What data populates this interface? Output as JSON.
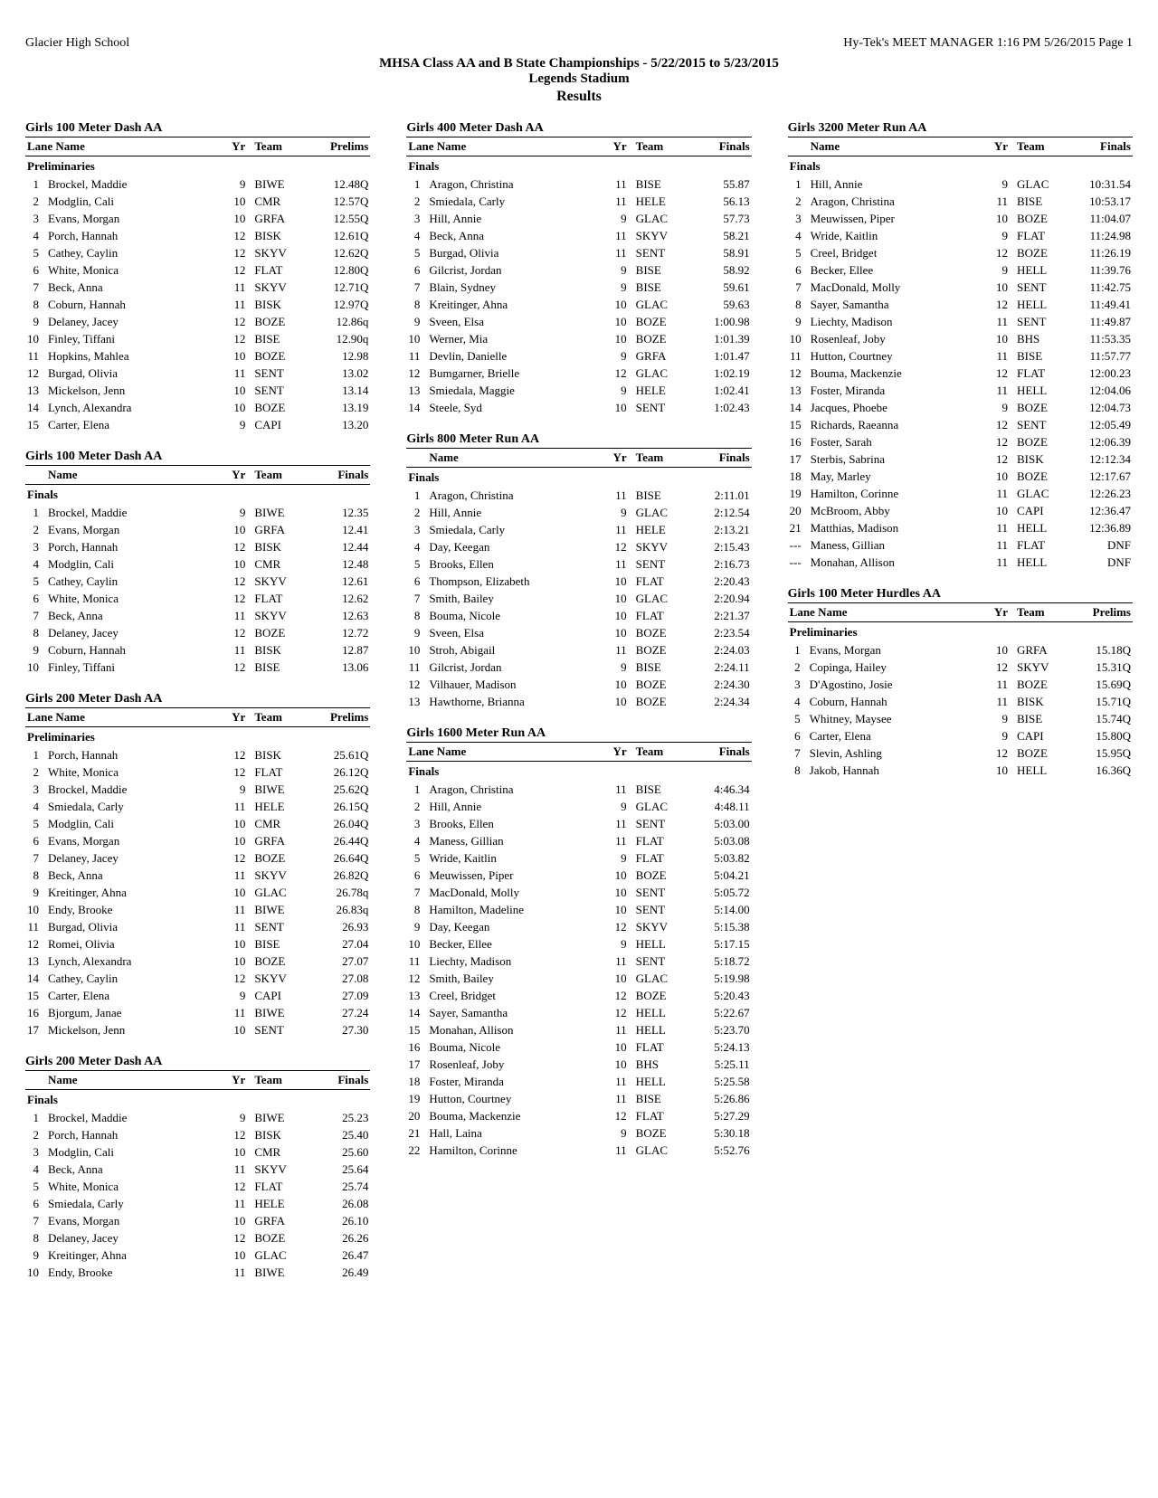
{
  "header": {
    "left": "Glacier High School",
    "right": "Hy-Tek's MEET MANAGER  1:16 PM  5/26/2015  Page 1"
  },
  "title": {
    "line1": "MHSA Class AA and B  State Championships - 5/22/2015 to 5/23/2015",
    "line2": "Legends Stadium",
    "results": "Results"
  },
  "col_labels": {
    "lane": "Lane",
    "name": "Name",
    "name_only": "Name",
    "yr": "Yr",
    "team": "Team",
    "prelims": "Prelims",
    "finals": "Finals"
  },
  "sections": {
    "preliminaries": "Preliminaries",
    "finals": "Finals"
  },
  "events": [
    {
      "title": "Girls 100 Meter Dash AA",
      "header_left": "lane_name",
      "result_label": "prelims",
      "section": "preliminaries",
      "rows": [
        [
          "1",
          "Brockel, Maddie",
          "9",
          "BIWE",
          "12.48Q"
        ],
        [
          "2",
          "Modglin, Cali",
          "10",
          "CMR",
          "12.57Q"
        ],
        [
          "3",
          "Evans, Morgan",
          "10",
          "GRFA",
          "12.55Q"
        ],
        [
          "4",
          "Porch, Hannah",
          "12",
          "BISK",
          "12.61Q"
        ],
        [
          "5",
          "Cathey, Caylin",
          "12",
          "SKYV",
          "12.62Q"
        ],
        [
          "6",
          "White, Monica",
          "12",
          "FLAT",
          "12.80Q"
        ],
        [
          "7",
          "Beck, Anna",
          "11",
          "SKYV",
          "12.71Q"
        ],
        [
          "8",
          "Coburn, Hannah",
          "11",
          "BISK",
          "12.97Q"
        ],
        [
          "9",
          "Delaney, Jacey",
          "12",
          "BOZE",
          "12.86q"
        ],
        [
          "10",
          "Finley, Tiffani",
          "12",
          "BISE",
          "12.90q"
        ],
        [
          "11",
          "Hopkins, Mahlea",
          "10",
          "BOZE",
          "12.98"
        ],
        [
          "12",
          "Burgad, Olivia",
          "11",
          "SENT",
          "13.02"
        ],
        [
          "13",
          "Mickelson, Jenn",
          "10",
          "SENT",
          "13.14"
        ],
        [
          "14",
          "Lynch, Alexandra",
          "10",
          "BOZE",
          "13.19"
        ],
        [
          "15",
          "Carter, Elena",
          "9",
          "CAPI",
          "13.20"
        ]
      ]
    },
    {
      "title": "Girls 100 Meter Dash AA",
      "header_left": "name_only",
      "result_label": "finals",
      "section": "finals",
      "rows": [
        [
          "1",
          "Brockel, Maddie",
          "9",
          "BIWE",
          "12.35"
        ],
        [
          "2",
          "Evans, Morgan",
          "10",
          "GRFA",
          "12.41"
        ],
        [
          "3",
          "Porch, Hannah",
          "12",
          "BISK",
          "12.44"
        ],
        [
          "4",
          "Modglin, Cali",
          "10",
          "CMR",
          "12.48"
        ],
        [
          "5",
          "Cathey, Caylin",
          "12",
          "SKYV",
          "12.61"
        ],
        [
          "6",
          "White, Monica",
          "12",
          "FLAT",
          "12.62"
        ],
        [
          "7",
          "Beck, Anna",
          "11",
          "SKYV",
          "12.63"
        ],
        [
          "8",
          "Delaney, Jacey",
          "12",
          "BOZE",
          "12.72"
        ],
        [
          "9",
          "Coburn, Hannah",
          "11",
          "BISK",
          "12.87"
        ],
        [
          "10",
          "Finley, Tiffani",
          "12",
          "BISE",
          "13.06"
        ]
      ]
    },
    {
      "title": "Girls 200 Meter Dash AA",
      "header_left": "lane_name",
      "result_label": "prelims",
      "section": "preliminaries",
      "rows": [
        [
          "1",
          "Porch, Hannah",
          "12",
          "BISK",
          "25.61Q"
        ],
        [
          "2",
          "White, Monica",
          "12",
          "FLAT",
          "26.12Q"
        ],
        [
          "3",
          "Brockel, Maddie",
          "9",
          "BIWE",
          "25.62Q"
        ],
        [
          "4",
          "Smiedala, Carly",
          "11",
          "HELE",
          "26.15Q"
        ],
        [
          "5",
          "Modglin, Cali",
          "10",
          "CMR",
          "26.04Q"
        ],
        [
          "6",
          "Evans, Morgan",
          "10",
          "GRFA",
          "26.44Q"
        ],
        [
          "7",
          "Delaney, Jacey",
          "12",
          "BOZE",
          "26.64Q"
        ],
        [
          "8",
          "Beck, Anna",
          "11",
          "SKYV",
          "26.82Q"
        ],
        [
          "9",
          "Kreitinger, Ahna",
          "10",
          "GLAC",
          "26.78q"
        ],
        [
          "10",
          "Endy, Brooke",
          "11",
          "BIWE",
          "26.83q"
        ],
        [
          "11",
          "Burgad, Olivia",
          "11",
          "SENT",
          "26.93"
        ],
        [
          "12",
          "Romei, Olivia",
          "10",
          "BISE",
          "27.04"
        ],
        [
          "13",
          "Lynch, Alexandra",
          "10",
          "BOZE",
          "27.07"
        ],
        [
          "14",
          "Cathey, Caylin",
          "12",
          "SKYV",
          "27.08"
        ],
        [
          "15",
          "Carter, Elena",
          "9",
          "CAPI",
          "27.09"
        ],
        [
          "16",
          "Bjorgum, Janae",
          "11",
          "BIWE",
          "27.24"
        ],
        [
          "17",
          "Mickelson, Jenn",
          "10",
          "SENT",
          "27.30"
        ]
      ]
    },
    {
      "title": "Girls 200 Meter Dash AA",
      "header_left": "name_only",
      "result_label": "finals",
      "section": "finals",
      "rows": [
        [
          "1",
          "Brockel, Maddie",
          "9",
          "BIWE",
          "25.23"
        ],
        [
          "2",
          "Porch, Hannah",
          "12",
          "BISK",
          "25.40"
        ],
        [
          "3",
          "Modglin, Cali",
          "10",
          "CMR",
          "25.60"
        ],
        [
          "4",
          "Beck, Anna",
          "11",
          "SKYV",
          "25.64"
        ],
        [
          "5",
          "White, Monica",
          "12",
          "FLAT",
          "25.74"
        ],
        [
          "6",
          "Smiedala, Carly",
          "11",
          "HELE",
          "26.08"
        ],
        [
          "7",
          "Evans, Morgan",
          "10",
          "GRFA",
          "26.10"
        ],
        [
          "8",
          "Delaney, Jacey",
          "12",
          "BOZE",
          "26.26"
        ],
        [
          "9",
          "Kreitinger, Ahna",
          "10",
          "GLAC",
          "26.47"
        ],
        [
          "10",
          "Endy, Brooke",
          "11",
          "BIWE",
          "26.49"
        ]
      ]
    },
    {
      "title": "Girls 400 Meter Dash AA",
      "header_left": "lane_name",
      "result_label": "finals",
      "section": "finals",
      "rows": [
        [
          "1",
          "Aragon, Christina",
          "11",
          "BISE",
          "55.87"
        ],
        [
          "2",
          "Smiedala, Carly",
          "11",
          "HELE",
          "56.13"
        ],
        [
          "3",
          "Hill, Annie",
          "9",
          "GLAC",
          "57.73"
        ],
        [
          "4",
          "Beck, Anna",
          "11",
          "SKYV",
          "58.21"
        ],
        [
          "5",
          "Burgad, Olivia",
          "11",
          "SENT",
          "58.91"
        ],
        [
          "6",
          "Gilcrist, Jordan",
          "9",
          "BISE",
          "58.92"
        ],
        [
          "7",
          "Blain, Sydney",
          "9",
          "BISE",
          "59.61"
        ],
        [
          "8",
          "Kreitinger, Ahna",
          "10",
          "GLAC",
          "59.63"
        ],
        [
          "9",
          "Sveen, Elsa",
          "10",
          "BOZE",
          "1:00.98"
        ],
        [
          "10",
          "Werner, Mia",
          "10",
          "BOZE",
          "1:01.39"
        ],
        [
          "11",
          "Devlin, Danielle",
          "9",
          "GRFA",
          "1:01.47"
        ],
        [
          "12",
          "Bumgarner, Brielle",
          "12",
          "GLAC",
          "1:02.19"
        ],
        [
          "13",
          "Smiedala, Maggie",
          "9",
          "HELE",
          "1:02.41"
        ],
        [
          "14",
          "Steele, Syd",
          "10",
          "SENT",
          "1:02.43"
        ]
      ]
    },
    {
      "title": "Girls 800 Meter Run AA",
      "header_left": "name_only",
      "result_label": "finals",
      "section": "finals",
      "rows": [
        [
          "1",
          "Aragon, Christina",
          "11",
          "BISE",
          "2:11.01"
        ],
        [
          "2",
          "Hill, Annie",
          "9",
          "GLAC",
          "2:12.54"
        ],
        [
          "3",
          "Smiedala, Carly",
          "11",
          "HELE",
          "2:13.21"
        ],
        [
          "4",
          "Day, Keegan",
          "12",
          "SKYV",
          "2:15.43"
        ],
        [
          "5",
          "Brooks, Ellen",
          "11",
          "SENT",
          "2:16.73"
        ],
        [
          "6",
          "Thompson, Elizabeth",
          "10",
          "FLAT",
          "2:20.43"
        ],
        [
          "7",
          "Smith, Bailey",
          "10",
          "GLAC",
          "2:20.94"
        ],
        [
          "8",
          "Bouma, Nicole",
          "10",
          "FLAT",
          "2:21.37"
        ],
        [
          "9",
          "Sveen, Elsa",
          "10",
          "BOZE",
          "2:23.54"
        ],
        [
          "10",
          "Stroh, Abigail",
          "11",
          "BOZE",
          "2:24.03"
        ],
        [
          "11",
          "Gilcrist, Jordan",
          "9",
          "BISE",
          "2:24.11"
        ],
        [
          "12",
          "Vilhauer, Madison",
          "10",
          "BOZE",
          "2:24.30"
        ],
        [
          "13",
          "Hawthorne, Brianna",
          "10",
          "BOZE",
          "2:24.34"
        ]
      ]
    },
    {
      "title": "Girls 1600 Meter Run AA",
      "header_left": "lane_name",
      "result_label": "finals",
      "section": "finals",
      "flow": true,
      "rows": [
        [
          "1",
          "Aragon, Christina",
          "11",
          "BISE",
          "4:46.34"
        ],
        [
          "2",
          "Hill, Annie",
          "9",
          "GLAC",
          "4:48.11"
        ],
        [
          "3",
          "Brooks, Ellen",
          "11",
          "SENT",
          "5:03.00"
        ],
        [
          "4",
          "Maness, Gillian",
          "11",
          "FLAT",
          "5:03.08"
        ],
        [
          "5",
          "Wride, Kaitlin",
          "9",
          "FLAT",
          "5:03.82"
        ],
        [
          "6",
          "Meuwissen, Piper",
          "10",
          "BOZE",
          "5:04.21"
        ],
        [
          "7",
          "MacDonald, Molly",
          "10",
          "SENT",
          "5:05.72"
        ],
        [
          "8",
          "Hamilton, Madeline",
          "10",
          "SENT",
          "5:14.00"
        ],
        [
          "9",
          "Day, Keegan",
          "12",
          "SKYV",
          "5:15.38"
        ],
        [
          "10",
          "Becker, Ellee",
          "9",
          "HELL",
          "5:17.15"
        ],
        [
          "11",
          "Liechty, Madison",
          "11",
          "SENT",
          "5:18.72"
        ],
        [
          "12",
          "Smith, Bailey",
          "10",
          "GLAC",
          "5:19.98"
        ],
        [
          "13",
          "Creel, Bridget",
          "12",
          "BOZE",
          "5:20.43"
        ],
        [
          "14",
          "Sayer, Samantha",
          "12",
          "HELL",
          "5:22.67"
        ],
        [
          "15",
          "Monahan, Allison",
          "11",
          "HELL",
          "5:23.70"
        ],
        [
          "16",
          "Bouma, Nicole",
          "10",
          "FLAT",
          "5:24.13"
        ],
        [
          "17",
          "Rosenleaf, Joby",
          "10",
          "BHS",
          "5:25.11"
        ],
        [
          "18",
          "Foster, Miranda",
          "11",
          "HELL",
          "5:25.58"
        ],
        [
          "19",
          "Hutton, Courtney",
          "11",
          "BISE",
          "5:26.86"
        ],
        [
          "20",
          "Bouma, Mackenzie",
          "12",
          "FLAT",
          "5:27.29"
        ],
        [
          "21",
          "Hall, Laina",
          "9",
          "BOZE",
          "5:30.18"
        ],
        [
          "22",
          "Hamilton, Corinne",
          "11",
          "GLAC",
          "5:52.76"
        ]
      ]
    },
    {
      "title": "Girls 3200 Meter Run AA",
      "header_left": "name_only",
      "result_label": "finals",
      "section": "finals",
      "rows": [
        [
          "1",
          "Hill, Annie",
          "9",
          "GLAC",
          "10:31.54"
        ],
        [
          "2",
          "Aragon, Christina",
          "11",
          "BISE",
          "10:53.17"
        ],
        [
          "3",
          "Meuwissen, Piper",
          "10",
          "BOZE",
          "11:04.07"
        ],
        [
          "4",
          "Wride, Kaitlin",
          "9",
          "FLAT",
          "11:24.98"
        ],
        [
          "5",
          "Creel, Bridget",
          "12",
          "BOZE",
          "11:26.19"
        ],
        [
          "6",
          "Becker, Ellee",
          "9",
          "HELL",
          "11:39.76"
        ],
        [
          "7",
          "MacDonald, Molly",
          "10",
          "SENT",
          "11:42.75"
        ],
        [
          "8",
          "Sayer, Samantha",
          "12",
          "HELL",
          "11:49.41"
        ],
        [
          "9",
          "Liechty, Madison",
          "11",
          "SENT",
          "11:49.87"
        ],
        [
          "10",
          "Rosenleaf, Joby",
          "10",
          "BHS",
          "11:53.35"
        ],
        [
          "11",
          "Hutton, Courtney",
          "11",
          "BISE",
          "11:57.77"
        ],
        [
          "12",
          "Bouma, Mackenzie",
          "12",
          "FLAT",
          "12:00.23"
        ],
        [
          "13",
          "Foster, Miranda",
          "11",
          "HELL",
          "12:04.06"
        ],
        [
          "14",
          "Jacques, Phoebe",
          "9",
          "BOZE",
          "12:04.73"
        ],
        [
          "15",
          "Richards, Raeanna",
          "12",
          "SENT",
          "12:05.49"
        ],
        [
          "16",
          "Foster, Sarah",
          "12",
          "BOZE",
          "12:06.39"
        ],
        [
          "17",
          "Sterbis, Sabrina",
          "12",
          "BISK",
          "12:12.34"
        ],
        [
          "18",
          "May, Marley",
          "10",
          "BOZE",
          "12:17.67"
        ],
        [
          "19",
          "Hamilton, Corinne",
          "11",
          "GLAC",
          "12:26.23"
        ],
        [
          "20",
          "McBroom, Abby",
          "10",
          "CAPI",
          "12:36.47"
        ],
        [
          "21",
          "Matthias, Madison",
          "11",
          "HELL",
          "12:36.89"
        ],
        [
          "---",
          "Maness, Gillian",
          "11",
          "FLAT",
          "DNF"
        ],
        [
          "---",
          "Monahan, Allison",
          "11",
          "HELL",
          "DNF"
        ]
      ]
    },
    {
      "title": "Girls 100 Meter Hurdles AA",
      "header_left": "lane_name",
      "result_label": "prelims",
      "section": "preliminaries",
      "rows": [
        [
          "1",
          "Evans, Morgan",
          "10",
          "GRFA",
          "15.18Q"
        ],
        [
          "2",
          "Copinga, Hailey",
          "12",
          "SKYV",
          "15.31Q"
        ],
        [
          "3",
          "D'Agostino, Josie",
          "11",
          "BOZE",
          "15.69Q"
        ],
        [
          "4",
          "Coburn, Hannah",
          "11",
          "BISK",
          "15.71Q"
        ],
        [
          "5",
          "Whitney, Maysee",
          "9",
          "BISE",
          "15.74Q"
        ],
        [
          "6",
          "Carter, Elena",
          "9",
          "CAPI",
          "15.80Q"
        ],
        [
          "7",
          "Slevin, Ashling",
          "12",
          "BOZE",
          "15.95Q"
        ],
        [
          "8",
          "Jakob, Hannah",
          "10",
          "HELL",
          "16.36Q"
        ]
      ]
    }
  ]
}
